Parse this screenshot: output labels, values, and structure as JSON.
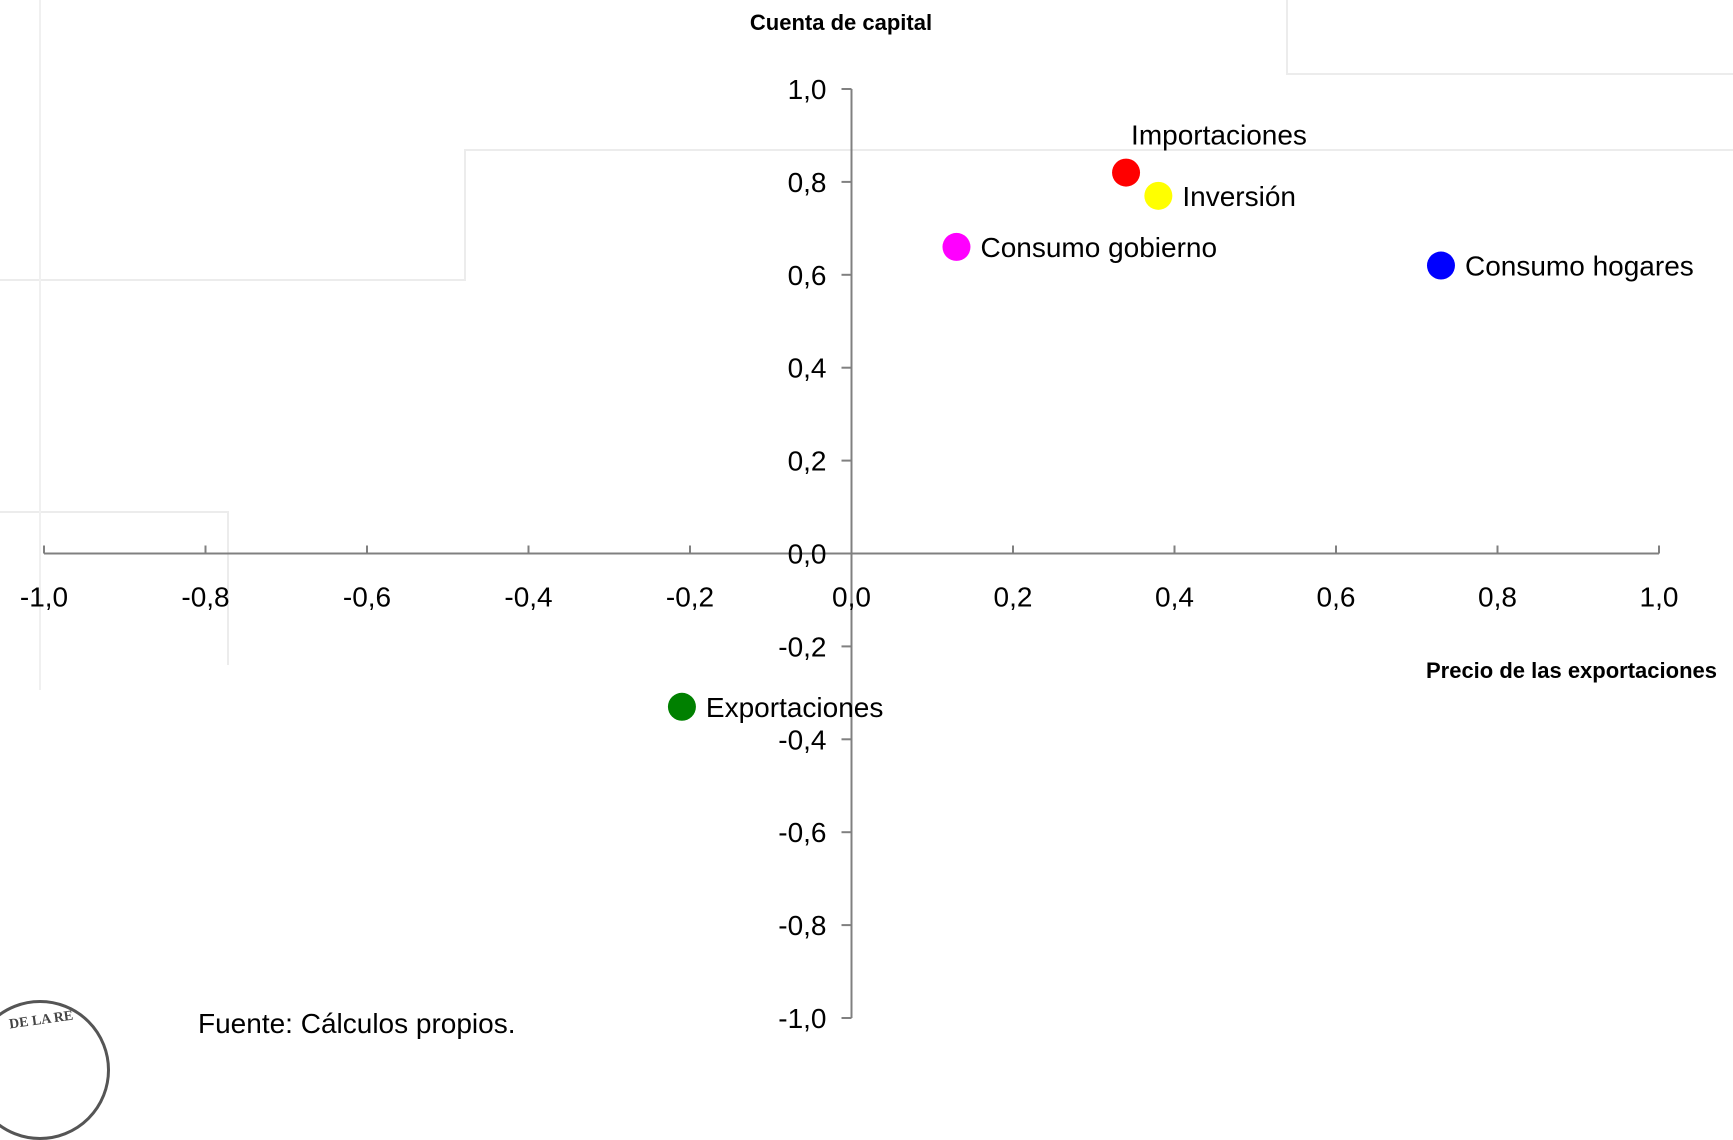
{
  "chart_data": {
    "type": "scatter",
    "title": "Cuenta de capital",
    "xlabel": "Precio de las exportaciones",
    "ylabel": "Cuenta de capital",
    "xlim": [
      -1.0,
      1.0
    ],
    "ylim": [
      -1.0,
      1.0
    ],
    "x_ticks": [
      "-1,0",
      "-0,8",
      "-0,6",
      "-0,4",
      "-0,2",
      "0,0",
      "0,2",
      "0,4",
      "0,6",
      "0,8",
      "1,0"
    ],
    "y_ticks": [
      "1,0",
      "0,8",
      "0,6",
      "0,4",
      "0,2",
      "0,0",
      "-0,2",
      "-0,4",
      "-0,6",
      "-0,8",
      "-1,0"
    ],
    "grid": false,
    "legend": "none",
    "points": [
      {
        "label": "Importaciones",
        "x": 0.34,
        "y": 0.82,
        "color": "#ff0000"
      },
      {
        "label": "Inversión",
        "x": 0.38,
        "y": 0.77,
        "color": "#ffff00"
      },
      {
        "label": "Consumo gobierno",
        "x": 0.13,
        "y": 0.66,
        "color": "#ff00ff"
      },
      {
        "label": "Consumo hogares",
        "x": 0.73,
        "y": 0.62,
        "color": "#0000ff"
      },
      {
        "label": "Exportaciones",
        "x": -0.21,
        "y": -0.33,
        "color": "#008000"
      }
    ]
  },
  "footer": {
    "source": "Fuente: Cálculos propios.",
    "seal_text": "DE LA RE"
  }
}
